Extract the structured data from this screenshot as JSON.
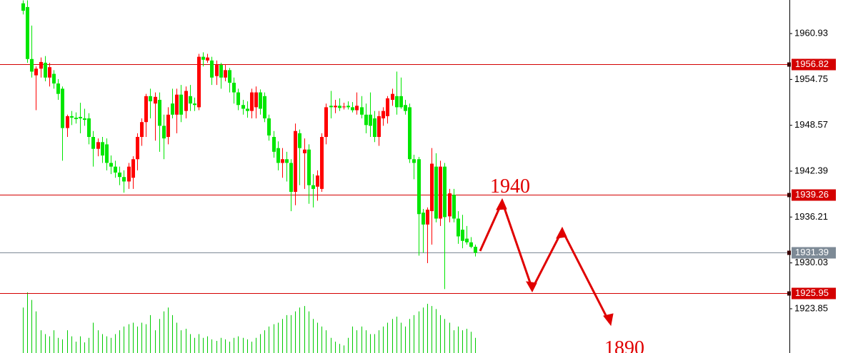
{
  "chart_data": {
    "type": "candlestick",
    "ylim": [
      1917.89,
      1965.45
    ],
    "yticks": [
      1960.93,
      1954.75,
      1948.57,
      1942.39,
      1936.21,
      1930.03,
      1923.85
    ],
    "up_color": "#ff0000",
    "down_color": "#00e600",
    "volume_color": "#00cc00",
    "levels": [
      {
        "value": 1956.82,
        "color": "#d40000"
      },
      {
        "value": 1939.26,
        "color": "#d40000"
      },
      {
        "value": 1925.95,
        "color": "#d40000"
      },
      {
        "value": 1931.39,
        "color": "#7d8a96"
      }
    ],
    "annotations": [
      "1940",
      "1890"
    ],
    "open": [
      1965.0,
      1964.5,
      1957.5,
      1955.3,
      1956.2,
      1957.0,
      1955.0,
      1955.5,
      1954.2,
      1953.5,
      1948.2,
      1949.8,
      1949.6,
      1949.7,
      1949.5,
      1949.5,
      1947.0,
      1945.4,
      1946.3,
      1946.0,
      1943.5,
      1943.0,
      1942.2,
      1941.6,
      1941.0,
      1941.5,
      1944.0,
      1947.0,
      1949.0,
      1952.5,
      1951.5,
      1952.0,
      1948.5,
      1947.0,
      1951.5,
      1950.0,
      1952.7,
      1950.5,
      1952.5,
      1951.5,
      1951.0,
      1957.8,
      1957.3,
      1957.3,
      1955.2,
      1956.7,
      1955.0,
      1956.0,
      1954.3,
      1953.0,
      1951.3,
      1950.8,
      1950.5,
      1951.0,
      1953.0,
      1952.5,
      1949.5,
      1947.0,
      1945.5,
      1943.5,
      1944.0,
      1943.5,
      1939.6,
      1947.5,
      1944.8,
      1945.3,
      1940.5,
      1940.3,
      1940.0,
      1947.0,
      1951.2,
      1951.0,
      1951.2,
      1951.0,
      1951.2,
      1951.0,
      1950.6,
      1951.0,
      1950.0,
      1950.0,
      1949.5,
      1947.0,
      1949.5,
      1949.8,
      1952.0,
      1952.5,
      1952.5,
      1951.3,
      1951.0,
      1944.0,
      1944.0,
      1936.8,
      1935.2,
      1937.0,
      1943.0,
      1936.0,
      1943.0,
      1936.3,
      1939.2,
      1936.0,
      1934.5,
      1933.3,
      1932.8,
      1932.2
    ],
    "high": [
      1965.4,
      1965.4,
      1962.0,
      1956.5,
      1957.7,
      1957.9,
      1957.0,
      1956.0,
      1954.8,
      1953.8,
      1950.0,
      1950.5,
      1950.3,
      1951.6,
      1950.8,
      1950.2,
      1947.8,
      1946.8,
      1947.0,
      1946.8,
      1944.5,
      1943.8,
      1943.0,
      1942.5,
      1943.5,
      1944.4,
      1947.5,
      1949.5,
      1952.8,
      1953.5,
      1953.0,
      1953.0,
      1950.0,
      1951.0,
      1953.5,
      1953.5,
      1954.0,
      1953.8,
      1954.0,
      1952.3,
      1958.2,
      1958.4,
      1958.2,
      1957.8,
      1957.3,
      1957.0,
      1956.8,
      1956.3,
      1955.0,
      1953.5,
      1952.0,
      1951.8,
      1953.5,
      1953.8,
      1953.4,
      1953.0,
      1950.0,
      1947.8,
      1946.4,
      1945.5,
      1945.0,
      1944.0,
      1948.8,
      1948.0,
      1946.8,
      1946.0,
      1942.0,
      1942.5,
      1947.5,
      1951.5,
      1953.2,
      1952.0,
      1952.2,
      1951.6,
      1951.8,
      1951.7,
      1953.0,
      1952.5,
      1951.5,
      1953.0,
      1950.5,
      1950.5,
      1951.0,
      1952.5,
      1953.5,
      1955.8,
      1955.0,
      1952.0,
      1951.5,
      1944.6,
      1944.3,
      1937.3,
      1937.5,
      1945.5,
      1944.8,
      1943.8,
      1943.5,
      1940.0,
      1940.0,
      1937.0,
      1936.5,
      1935.0,
      1933.5,
      1932.5
    ],
    "low": [
      1963.5,
      1957.0,
      1955.0,
      1950.6,
      1955.0,
      1954.5,
      1953.8,
      1953.5,
      1952.0,
      1943.8,
      1947.0,
      1948.6,
      1948.8,
      1947.5,
      1948.5,
      1946.0,
      1943.0,
      1944.4,
      1943.5,
      1942.5,
      1942.0,
      1941.5,
      1940.5,
      1939.5,
      1940.0,
      1940.0,
      1942.5,
      1945.8,
      1947.0,
      1949.5,
      1946.5,
      1945.0,
      1944.0,
      1946.0,
      1949.5,
      1947.5,
      1949.0,
      1949.5,
      1950.5,
      1950.5,
      1950.6,
      1956.5,
      1957.0,
      1954.0,
      1954.0,
      1953.5,
      1954.5,
      1953.0,
      1951.5,
      1950.6,
      1950.0,
      1949.6,
      1949.5,
      1949.5,
      1950.0,
      1949.0,
      1946.5,
      1944.2,
      1942.5,
      1941.5,
      1941.0,
      1937.0,
      1937.8,
      1940.5,
      1940.0,
      1938.0,
      1937.5,
      1938.4,
      1939.6,
      1946.0,
      1949.5,
      1950.2,
      1950.5,
      1950.7,
      1950.7,
      1950.3,
      1950.0,
      1949.5,
      1947.5,
      1947.0,
      1946.3,
      1945.8,
      1948.5,
      1948.8,
      1951.2,
      1950.0,
      1950.8,
      1950.0,
      1943.5,
      1941.3,
      1931.0,
      1931.4,
      1930.0,
      1932.5,
      1935.5,
      1935.0,
      1926.5,
      1935.5,
      1935.5,
      1932.6,
      1932.0,
      1932.5,
      1932.0,
      1930.9
    ],
    "close": [
      1964.0,
      1957.5,
      1955.8,
      1956.2,
      1957.1,
      1955.0,
      1956.4,
      1954.2,
      1952.8,
      1948.2,
      1949.8,
      1949.6,
      1949.4,
      1949.5,
      1949.3,
      1947.0,
      1945.4,
      1946.3,
      1944.5,
      1943.5,
      1943.0,
      1942.2,
      1941.6,
      1941.0,
      1943.0,
      1944.0,
      1947.0,
      1949.0,
      1952.5,
      1951.8,
      1952.4,
      1948.5,
      1946.8,
      1950.0,
      1950.0,
      1952.7,
      1950.0,
      1953.2,
      1951.5,
      1951.3,
      1957.8,
      1957.4,
      1957.7,
      1955.0,
      1956.7,
      1955.0,
      1956.0,
      1954.3,
      1953.0,
      1951.3,
      1950.8,
      1950.5,
      1953.0,
      1953.0,
      1950.8,
      1949.5,
      1947.2,
      1945.0,
      1943.5,
      1944.0,
      1943.5,
      1939.6,
      1947.8,
      1945.5,
      1945.3,
      1940.5,
      1940.0,
      1941.8,
      1947.0,
      1951.0,
      1951.0,
      1951.2,
      1950.9,
      1951.1,
      1951.0,
      1950.6,
      1951.2,
      1950.0,
      1948.6,
      1948.5,
      1947.0,
      1949.8,
      1950.5,
      1952.2,
      1952.8,
      1951.0,
      1951.0,
      1950.5,
      1944.0,
      1943.5,
      1936.6,
      1935.2,
      1937.2,
      1943.4,
      1936.0,
      1943.0,
      1936.2,
      1939.4,
      1936.0,
      1933.6,
      1933.0,
      1932.8,
      1932.2,
      1931.4
    ],
    "volume": [
      60,
      80,
      70,
      55,
      30,
      25,
      22,
      30,
      20,
      18,
      30,
      22,
      15,
      22,
      14,
      20,
      40,
      30,
      25,
      22,
      20,
      25,
      30,
      35,
      38,
      40,
      35,
      40,
      38,
      50,
      30,
      45,
      55,
      60,
      50,
      40,
      30,
      32,
      25,
      20,
      25,
      20,
      22,
      18,
      16,
      20,
      18,
      15,
      20,
      22,
      20,
      18,
      15,
      20,
      25,
      30,
      35,
      38,
      40,
      45,
      50,
      50,
      55,
      60,
      62,
      55,
      45,
      40,
      35,
      30,
      20,
      15,
      12,
      10,
      20,
      35,
      30,
      35,
      30,
      25,
      25,
      30,
      35,
      40,
      45,
      48,
      40,
      35,
      45,
      50,
      55,
      60,
      65,
      62,
      58,
      50,
      45,
      40,
      30,
      35,
      30,
      32,
      28,
      20
    ]
  }
}
